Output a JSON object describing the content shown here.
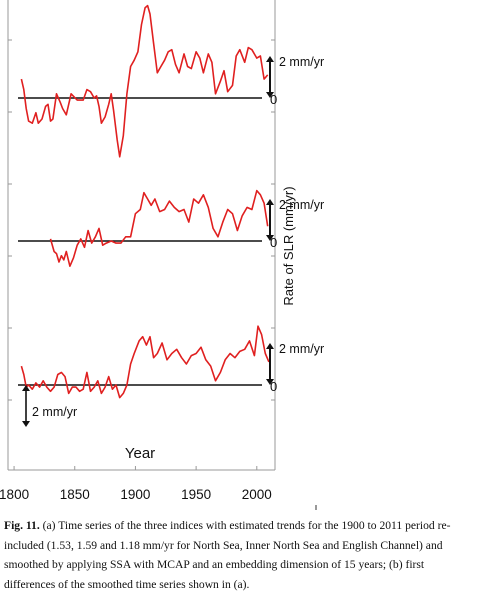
{
  "chart_data": {
    "type": "line",
    "xlabel": "Year",
    "ylabel": "Rate of SLR (mm/yr)",
    "x_ticks": [
      1800,
      1850,
      1900,
      1950,
      2000
    ],
    "xlim": [
      1795,
      2015
    ],
    "line_color": "#e02020",
    "scale_label": "2 mm/yr",
    "zero_label": "0",
    "panels": [
      {
        "x": [
          1806,
          1808,
          1810,
          1812,
          1815,
          1818,
          1820,
          1823,
          1826,
          1828,
          1830,
          1832,
          1835,
          1838,
          1840,
          1843,
          1847,
          1852,
          1857,
          1860,
          1863,
          1866,
          1868,
          1870,
          1872,
          1875,
          1878,
          1880,
          1882,
          1885,
          1887,
          1890,
          1893,
          1896,
          1899,
          1902,
          1905,
          1908,
          1910,
          1912,
          1915,
          1918,
          1921,
          1924,
          1927,
          1930,
          1933,
          1936,
          1940,
          1943,
          1946,
          1950,
          1953,
          1956,
          1960,
          1963,
          1966,
          1970,
          1973,
          1976,
          1980,
          1983,
          1986,
          1990,
          1993,
          1996,
          2000,
          2003,
          2006,
          2009
        ],
        "y": [
          0.9,
          0.4,
          -0.5,
          -1.1,
          -1.2,
          -0.7,
          -1.2,
          -1.0,
          -0.4,
          -0.3,
          -1.1,
          -1.0,
          0.2,
          -0.2,
          -0.5,
          -0.8,
          0.2,
          -0.1,
          -0.1,
          0.4,
          0.3,
          0.0,
          0.1,
          -0.4,
          -1.2,
          -0.9,
          -0.3,
          0.2,
          -0.6,
          -2.0,
          -2.8,
          -1.8,
          0.2,
          1.5,
          1.8,
          2.2,
          3.5,
          4.3,
          4.4,
          4.0,
          2.6,
          1.2,
          1.5,
          1.8,
          2.2,
          2.3,
          1.6,
          1.2,
          2.1,
          1.5,
          1.4,
          2.2,
          1.9,
          1.2,
          2.1,
          1.7,
          0.2,
          0.8,
          1.3,
          0.3,
          0.6,
          2.0,
          2.3,
          1.7,
          2.4,
          2.3,
          1.9,
          2.0,
          0.9,
          1.1
        ]
      },
      {
        "x": [
          1830,
          1833,
          1835,
          1837,
          1839,
          1841,
          1843,
          1846,
          1849,
          1852,
          1855,
          1858,
          1861,
          1864,
          1867,
          1870,
          1873,
          1876,
          1880,
          1884,
          1888,
          1892,
          1896,
          1900,
          1904,
          1907,
          1910,
          1913,
          1916,
          1920,
          1924,
          1928,
          1932,
          1936,
          1940,
          1944,
          1948,
          1952,
          1956,
          1960,
          1964,
          1968,
          1972,
          1976,
          1980,
          1984,
          1988,
          1992,
          1996,
          2000,
          2003,
          2006,
          2009
        ],
        "y": [
          0.1,
          -0.5,
          -0.6,
          -1.0,
          -0.7,
          -0.9,
          -0.5,
          -1.2,
          -0.8,
          -0.2,
          0.1,
          -0.3,
          0.5,
          -0.1,
          0.2,
          0.6,
          -0.2,
          -0.1,
          0.0,
          -0.1,
          -0.1,
          0.2,
          0.2,
          1.3,
          1.5,
          2.3,
          2.0,
          1.7,
          2.0,
          1.4,
          1.5,
          1.9,
          1.6,
          1.4,
          1.5,
          0.9,
          2.0,
          1.8,
          2.2,
          1.6,
          0.6,
          0.2,
          0.9,
          1.5,
          1.3,
          0.5,
          1.2,
          1.6,
          1.5,
          2.4,
          2.2,
          1.8,
          0.7
        ]
      },
      {
        "x": [
          1806,
          1808,
          1810,
          1812,
          1815,
          1818,
          1821,
          1824,
          1827,
          1830,
          1833,
          1836,
          1839,
          1842,
          1845,
          1848,
          1851,
          1854,
          1857,
          1860,
          1863,
          1866,
          1869,
          1872,
          1875,
          1878,
          1881,
          1884,
          1887,
          1890,
          1893,
          1896,
          1899,
          1903,
          1906,
          1909,
          1912,
          1915,
          1918,
          1922,
          1926,
          1930,
          1934,
          1938,
          1942,
          1946,
          1950,
          1954,
          1958,
          1962,
          1966,
          1970,
          1974,
          1978,
          1982,
          1986,
          1990,
          1994,
          1998,
          2001,
          2004,
          2007,
          2010
        ],
        "y": [
          0.9,
          0.5,
          -0.1,
          0.0,
          -0.2,
          0.1,
          -0.1,
          0.2,
          -0.1,
          -0.3,
          -0.1,
          0.5,
          0.6,
          0.4,
          -0.4,
          -0.1,
          -0.1,
          -0.3,
          -0.2,
          0.6,
          -0.3,
          -0.1,
          0.2,
          -0.4,
          -0.1,
          0.4,
          -0.2,
          0.0,
          -0.6,
          -0.4,
          0.0,
          1.0,
          1.5,
          2.1,
          2.3,
          1.9,
          2.3,
          1.3,
          1.5,
          2.0,
          1.2,
          1.5,
          1.7,
          1.3,
          1.0,
          1.4,
          1.5,
          1.8,
          1.2,
          0.9,
          0.2,
          0.6,
          1.2,
          1.5,
          1.3,
          1.6,
          1.7,
          2.1,
          1.4,
          2.8,
          2.4,
          1.5,
          1.1
        ]
      }
    ]
  },
  "caption": {
    "label": "Fig. 11.",
    "text": "(a) Time series of the three indices with estimated trends for the 1900 to 2011 period re-included (1.53, 1.59 and 1.18 mm/yr for North Sea, Inner North Sea and English Channel) and smoothed by applying SSA with MCAP and an embedding dimension of 15 years; (b) first differences of the smoothed time series shown in (a)."
  }
}
